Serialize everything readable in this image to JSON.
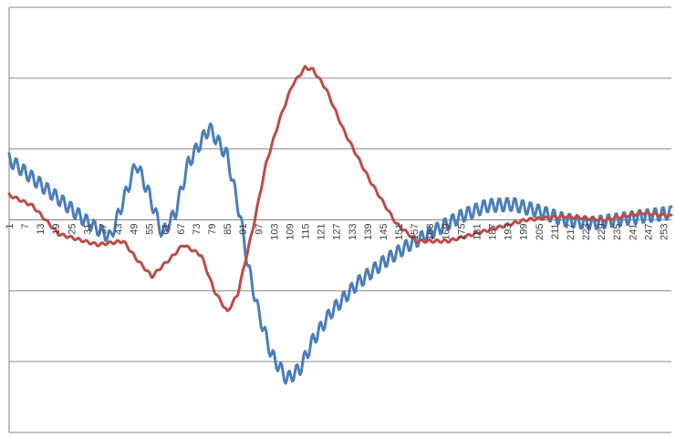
{
  "chart_data": {
    "type": "line",
    "title": "",
    "xlabel": "",
    "ylabel": "",
    "x_start": 1,
    "x_end": 256,
    "x_tick_labels": [
      "1",
      "7",
      "13",
      "19",
      "25",
      "31",
      "37",
      "43",
      "49",
      "55",
      "61",
      "67",
      "73",
      "79",
      "85",
      "91",
      "97",
      "103",
      "109",
      "115",
      "121",
      "127",
      "133",
      "139",
      "145",
      "151",
      "157",
      "163",
      "169",
      "175",
      "181",
      "187",
      "193",
      "199",
      "205",
      "211",
      "217",
      "223",
      "229",
      "235",
      "241",
      "247",
      "253"
    ],
    "ylim": [
      -3,
      3
    ],
    "y_gridlines": [
      -3,
      -2,
      -1,
      0,
      1,
      2,
      3
    ],
    "legend": "none",
    "grid": true,
    "series": [
      {
        "color": "#4a7ebb",
        "oscillation_amplitude": 0.1,
        "oscillation_period": 3,
        "keypoints_x": [
          1,
          20,
          30,
          40,
          50,
          55,
          60,
          65,
          70,
          78,
          85,
          90,
          93,
          97,
          102,
          108,
          113,
          118,
          125,
          135,
          145,
          155,
          165,
          175,
          185,
          195,
          205,
          215,
          225,
          235,
          245,
          256
        ],
        "keypoints_y": [
          0.85,
          0.3,
          0.0,
          -0.25,
          0.8,
          0.35,
          -0.2,
          0.1,
          0.8,
          1.3,
          0.9,
          0.05,
          -0.65,
          -1.3,
          -1.9,
          -2.25,
          -2.1,
          -1.7,
          -1.3,
          -0.9,
          -0.6,
          -0.35,
          -0.15,
          0.05,
          0.2,
          0.22,
          0.12,
          0.0,
          -0.05,
          0.0,
          0.05,
          0.1
        ]
      },
      {
        "color": "#be4b48",
        "oscillation_amplitude": 0.02,
        "oscillation_period": 3,
        "keypoints_x": [
          1,
          10,
          20,
          35,
          45,
          50,
          56,
          60,
          63,
          68,
          75,
          80,
          85,
          89,
          95,
          100,
          105,
          110,
          115,
          118,
          123,
          130,
          140,
          150,
          158,
          170,
          185,
          200,
          215,
          230,
          245,
          256
        ],
        "keypoints_y": [
          0.35,
          0.2,
          -0.2,
          -0.35,
          -0.3,
          -0.55,
          -0.8,
          -0.65,
          -0.55,
          -0.35,
          -0.5,
          -1.0,
          -1.3,
          -1.05,
          -0.1,
          0.8,
          1.4,
          1.9,
          2.15,
          2.12,
          1.85,
          1.25,
          0.55,
          -0.05,
          -0.3,
          -0.3,
          -0.15,
          0.0,
          0.05,
          0.0,
          0.1,
          0.05
        ]
      }
    ]
  }
}
